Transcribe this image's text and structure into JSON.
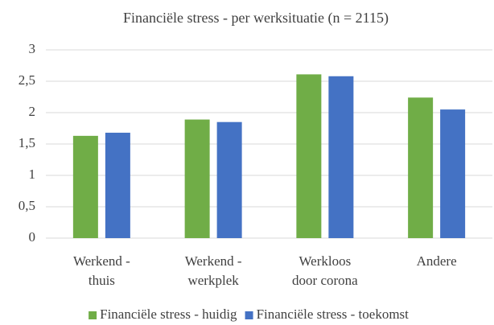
{
  "chart_data": {
    "type": "bar",
    "title": "Financiële stress - per werksituatie (n = 2115)",
    "categories": [
      [
        "Werkend -",
        "thuis"
      ],
      [
        "Werkend -",
        "werkplek"
      ],
      [
        "Werkloos",
        "door corona"
      ],
      [
        "Andere"
      ]
    ],
    "series": [
      {
        "name": "Financiële stress - huidig",
        "color": "#70ad47",
        "values": [
          1.63,
          1.89,
          2.61,
          2.24
        ]
      },
      {
        "name": "Financiële stress - toekomst",
        "color": "#4472c4",
        "values": [
          1.68,
          1.85,
          2.58,
          2.05
        ]
      }
    ],
    "ylim": [
      0,
      3
    ],
    "yticks": [
      0,
      {
        "value": 0.5,
        "label": "0,5"
      },
      1,
      {
        "value": 1.5,
        "label": "1,5"
      },
      2,
      {
        "value": 2.5,
        "label": "2,5"
      },
      3
    ],
    "grid": true,
    "legend": "bottom"
  }
}
